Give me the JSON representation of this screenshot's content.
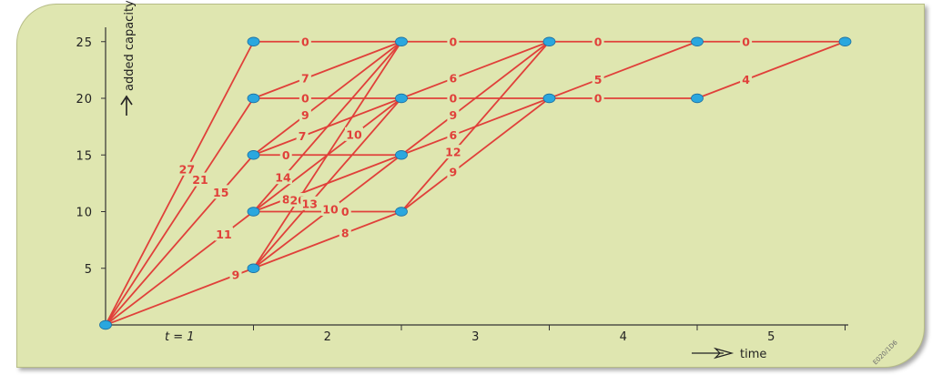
{
  "y_axis": {
    "title": "added capacity",
    "ticks": [
      {
        "v": 25,
        "label": "25"
      },
      {
        "v": 20,
        "label": "20"
      },
      {
        "v": 15,
        "label": "15"
      },
      {
        "v": 10,
        "label": "10"
      },
      {
        "v": 5,
        "label": "5"
      }
    ]
  },
  "x_axis": {
    "title": "time",
    "period_labels": [
      {
        "t": 1,
        "label": "t = 1"
      },
      {
        "t": 2,
        "label": "2"
      },
      {
        "t": 3,
        "label": "3"
      },
      {
        "t": 4,
        "label": "4"
      },
      {
        "t": 5,
        "label": "5"
      }
    ]
  },
  "colors": {
    "edge": "#e0403a",
    "node": "#2aa7de",
    "node_stroke": "#1b6ea0",
    "axis": "#333333"
  },
  "nodes": [
    {
      "t": 0,
      "c": 0
    },
    {
      "t": 1,
      "c": 25
    },
    {
      "t": 1,
      "c": 20
    },
    {
      "t": 1,
      "c": 15
    },
    {
      "t": 1,
      "c": 10
    },
    {
      "t": 1,
      "c": 5
    },
    {
      "t": 2,
      "c": 25
    },
    {
      "t": 2,
      "c": 20
    },
    {
      "t": 2,
      "c": 15
    },
    {
      "t": 2,
      "c": 10
    },
    {
      "t": 3,
      "c": 25
    },
    {
      "t": 3,
      "c": 20
    },
    {
      "t": 4,
      "c": 25
    },
    {
      "t": 4,
      "c": 20
    },
    {
      "t": 5,
      "c": 25
    }
  ],
  "edges": [
    {
      "from": [
        0,
        0
      ],
      "to": [
        1,
        25
      ],
      "label": "27",
      "pos": 0.55
    },
    {
      "from": [
        0,
        0
      ],
      "to": [
        1,
        20
      ],
      "label": "21",
      "pos": 0.64
    },
    {
      "from": [
        0,
        0
      ],
      "to": [
        1,
        15
      ],
      "label": "15",
      "pos": 0.78
    },
    {
      "from": [
        0,
        0
      ],
      "to": [
        1,
        10
      ],
      "label": "11",
      "pos": 0.8
    },
    {
      "from": [
        0,
        0
      ],
      "to": [
        1,
        5
      ],
      "label": "9",
      "pos": 0.88
    },
    {
      "from": [
        1,
        25
      ],
      "to": [
        2,
        25
      ],
      "label": "0",
      "pos": 0.35
    },
    {
      "from": [
        1,
        20
      ],
      "to": [
        2,
        25
      ],
      "label": "7",
      "pos": 0.35
    },
    {
      "from": [
        1,
        20
      ],
      "to": [
        2,
        20
      ],
      "label": "0",
      "pos": 0.35
    },
    {
      "from": [
        1,
        15
      ],
      "to": [
        2,
        25
      ],
      "label": "9",
      "pos": 0.35
    },
    {
      "from": [
        1,
        15
      ],
      "to": [
        2,
        20
      ],
      "label": "7",
      "pos": 0.33
    },
    {
      "from": [
        1,
        15
      ],
      "to": [
        2,
        15
      ],
      "label": "0",
      "pos": 0.22
    },
    {
      "from": [
        1,
        10
      ],
      "to": [
        2,
        25
      ],
      "label": "14",
      "pos": 0.2
    },
    {
      "from": [
        1,
        10
      ],
      "to": [
        2,
        20
      ],
      "label": "10",
      "pos": 0.68
    },
    {
      "from": [
        1,
        10
      ],
      "to": [
        2,
        15
      ],
      "label": "8",
      "pos": 0.22
    },
    {
      "from": [
        1,
        10
      ],
      "to": [
        2,
        10
      ],
      "label": "0",
      "pos": 0.62
    },
    {
      "from": [
        1,
        5
      ],
      "to": [
        2,
        25
      ],
      "label": "20",
      "pos": 0.3
    },
    {
      "from": [
        1,
        5
      ],
      "to": [
        2,
        20
      ],
      "label": "13",
      "pos": 0.38
    },
    {
      "from": [
        1,
        5
      ],
      "to": [
        2,
        15
      ],
      "label": "10",
      "pos": 0.52
    },
    {
      "from": [
        1,
        5
      ],
      "to": [
        2,
        10
      ],
      "label": "8",
      "pos": 0.62
    },
    {
      "from": [
        2,
        25
      ],
      "to": [
        3,
        25
      ],
      "label": "0",
      "pos": 0.35
    },
    {
      "from": [
        2,
        20
      ],
      "to": [
        3,
        25
      ],
      "label": "6",
      "pos": 0.35
    },
    {
      "from": [
        2,
        20
      ],
      "to": [
        3,
        20
      ],
      "label": "0",
      "pos": 0.35
    },
    {
      "from": [
        2,
        15
      ],
      "to": [
        3,
        25
      ],
      "label": "9",
      "pos": 0.35
    },
    {
      "from": [
        2,
        15
      ],
      "to": [
        3,
        20
      ],
      "label": "6",
      "pos": 0.35
    },
    {
      "from": [
        2,
        10
      ],
      "to": [
        3,
        25
      ],
      "label": "12",
      "pos": 0.35
    },
    {
      "from": [
        2,
        10
      ],
      "to": [
        3,
        20
      ],
      "label": "9",
      "pos": 0.35
    },
    {
      "from": [
        3,
        25
      ],
      "to": [
        4,
        25
      ],
      "label": "0",
      "pos": 0.33
    },
    {
      "from": [
        3,
        20
      ],
      "to": [
        4,
        25
      ],
      "label": "5",
      "pos": 0.33
    },
    {
      "from": [
        3,
        20
      ],
      "to": [
        4,
        20
      ],
      "label": "0",
      "pos": 0.33
    },
    {
      "from": [
        4,
        25
      ],
      "to": [
        5,
        25
      ],
      "label": "0",
      "pos": 0.33
    },
    {
      "from": [
        4,
        20
      ],
      "to": [
        5,
        25
      ],
      "label": "4",
      "pos": 0.33
    }
  ],
  "figure_code": "E020/1D6"
}
